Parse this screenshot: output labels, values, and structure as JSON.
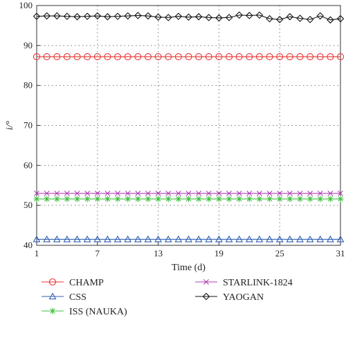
{
  "chart_data": {
    "type": "line",
    "title": "",
    "xlabel": "Time (d)",
    "ylabel": "i/°",
    "x": [
      1,
      2,
      3,
      4,
      5,
      6,
      7,
      8,
      9,
      10,
      11,
      12,
      13,
      14,
      15,
      16,
      17,
      18,
      19,
      20,
      21,
      22,
      23,
      24,
      25,
      26,
      27,
      28,
      29,
      30,
      31
    ],
    "xticks": [
      "1",
      "7",
      "13",
      "19",
      "25",
      "31"
    ],
    "yticks": [
      "40",
      "50",
      "60",
      "70",
      "80",
      "90",
      "100"
    ],
    "xlim": [
      1,
      31
    ],
    "ylim": [
      40,
      100
    ],
    "grid": true,
    "legend_position": "bottom",
    "series": [
      {
        "name": "CHAMP",
        "color": "#e8312f",
        "marker": "circle",
        "values": [
          87.2,
          87.2,
          87.2,
          87.2,
          87.2,
          87.2,
          87.2,
          87.2,
          87.2,
          87.2,
          87.2,
          87.2,
          87.2,
          87.2,
          87.2,
          87.2,
          87.2,
          87.2,
          87.2,
          87.2,
          87.2,
          87.2,
          87.2,
          87.2,
          87.2,
          87.2,
          87.2,
          87.2,
          87.2,
          87.2,
          87.2
        ]
      },
      {
        "name": "CSS",
        "color": "#2f5fb3",
        "marker": "triangle",
        "values": [
          41.5,
          41.5,
          41.5,
          41.5,
          41.5,
          41.5,
          41.5,
          41.5,
          41.5,
          41.5,
          41.5,
          41.5,
          41.5,
          41.5,
          41.5,
          41.5,
          41.5,
          41.5,
          41.5,
          41.5,
          41.5,
          41.5,
          41.5,
          41.5,
          41.5,
          41.5,
          41.5,
          41.5,
          41.5,
          41.5,
          41.5
        ]
      },
      {
        "name": "ISS (NAUKA)",
        "color": "#3fbf3f",
        "marker": "star",
        "values": [
          51.6,
          51.6,
          51.6,
          51.6,
          51.6,
          51.6,
          51.6,
          51.6,
          51.6,
          51.6,
          51.6,
          51.6,
          51.6,
          51.6,
          51.6,
          51.6,
          51.6,
          51.6,
          51.6,
          51.6,
          51.6,
          51.6,
          51.6,
          51.6,
          51.6,
          51.6,
          51.6,
          51.6,
          51.6,
          51.6,
          51.6
        ]
      },
      {
        "name": "STARLINK-1824",
        "color": "#b03fb3",
        "marker": "x",
        "values": [
          53,
          53,
          53,
          53,
          53,
          53,
          53,
          53,
          53,
          53,
          53,
          53,
          53,
          53,
          53,
          53,
          53,
          53,
          53,
          53,
          53,
          53,
          53,
          53,
          53,
          53,
          53,
          53,
          53,
          53,
          53
        ]
      },
      {
        "name": "YAOGAN",
        "color": "#111111",
        "marker": "diamond",
        "values": [
          97.3,
          97.4,
          97.4,
          97.3,
          97.2,
          97.3,
          97.4,
          97.2,
          97.3,
          97.4,
          97.5,
          97.4,
          97.1,
          97.0,
          97.3,
          97.1,
          97.2,
          97.0,
          96.9,
          97.0,
          97.6,
          97.5,
          97.6,
          96.7,
          96.5,
          97.2,
          96.8,
          96.5,
          97.4,
          96.4,
          96.7
        ]
      }
    ]
  }
}
